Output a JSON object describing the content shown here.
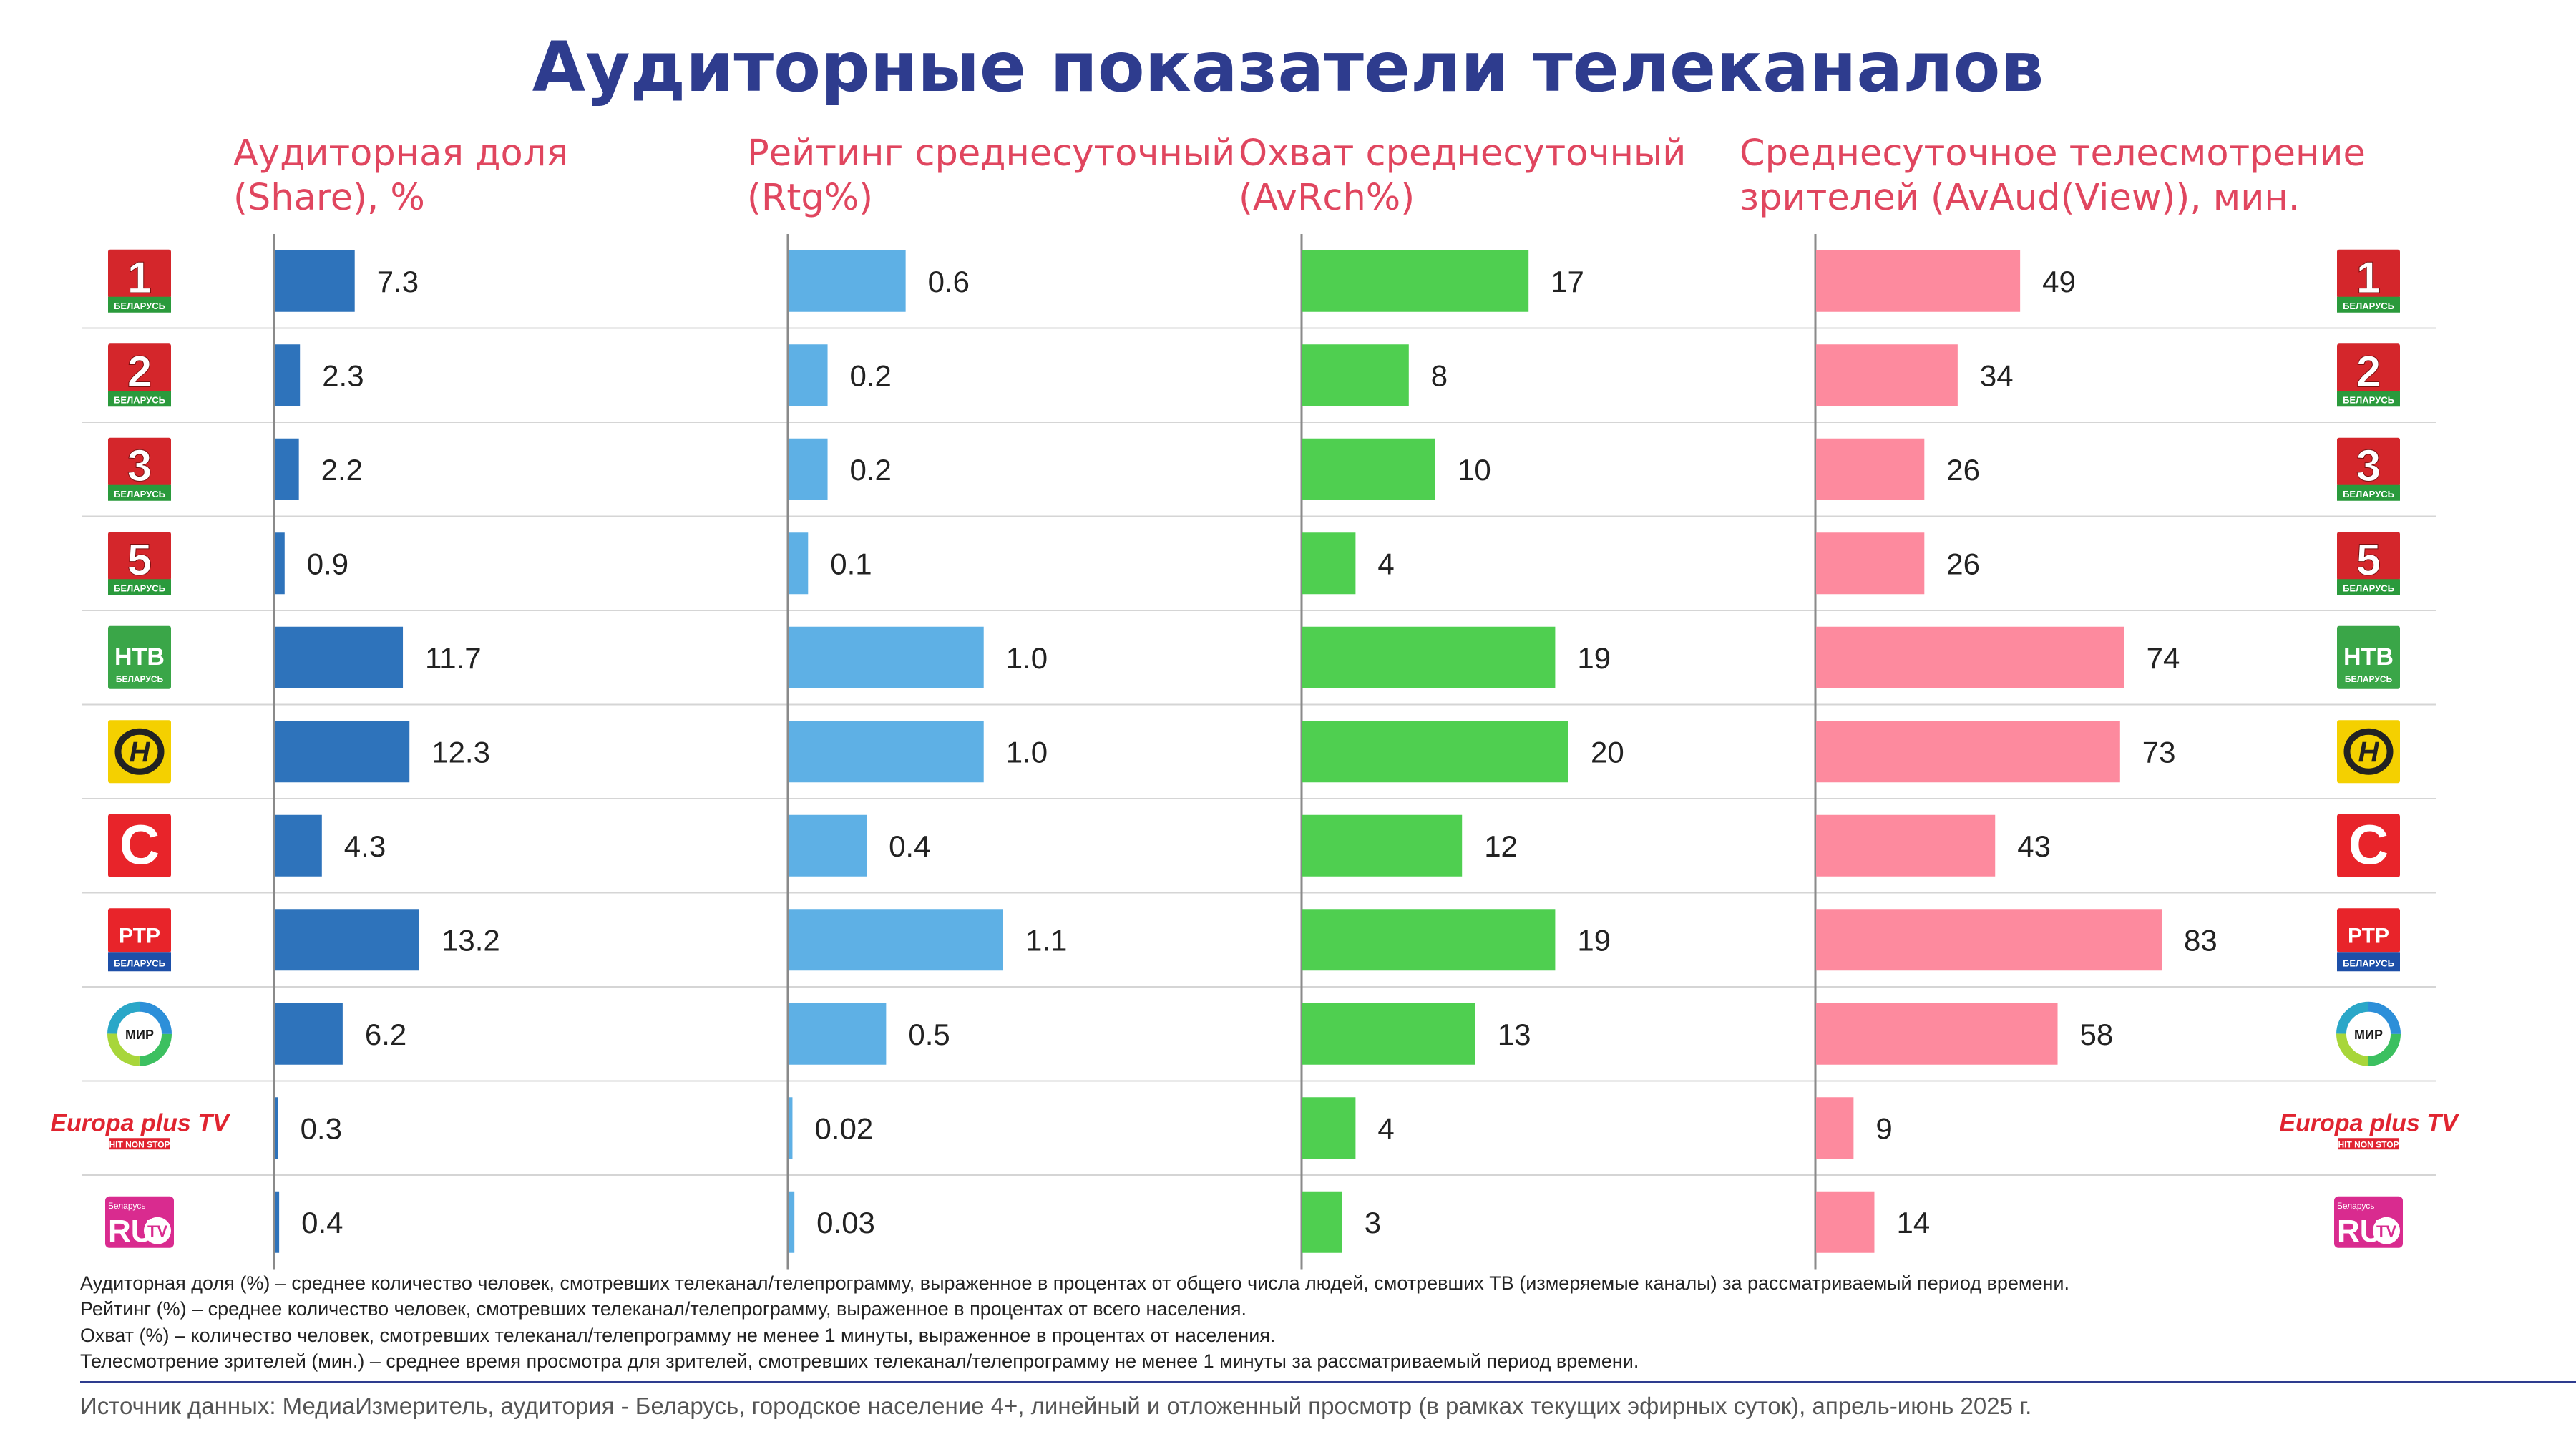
{
  "title": "Аудиторные показатели телеканалов",
  "chart_data": {
    "type": "bar",
    "orientation": "horizontal",
    "channels": [
      "Беларусь 1",
      "Беларусь 2",
      "Беларусь 3",
      "Беларусь 5",
      "НТВ Беларусь",
      "ОНТ",
      "СТВ",
      "РТР Беларусь",
      "МИР",
      "Europa Plus TV",
      "RU TV Беларусь"
    ],
    "panels": [
      {
        "key": "share",
        "title_lines": [
          "Аудиторная доля",
          "(Share), %"
        ],
        "values": [
          7.3,
          2.3,
          2.2,
          0.9,
          11.7,
          12.3,
          4.3,
          13.2,
          6.2,
          0.3,
          0.4
        ],
        "labels": [
          "7.3",
          "2.3",
          "2.2",
          "0.9",
          "11.7",
          "12.3",
          "4.3",
          "13.2",
          "6.2",
          "0.3",
          "0.4"
        ],
        "max": 13.2,
        "color": "#2e73bb"
      },
      {
        "key": "rtg",
        "title_lines": [
          "Рейтинг среднесуточный",
          "(Rtg%)"
        ],
        "values": [
          0.6,
          0.2,
          0.2,
          0.1,
          1.0,
          1.0,
          0.4,
          1.1,
          0.5,
          0.02,
          0.03
        ],
        "labels": [
          "0.6",
          "0.2",
          "0.2",
          "0.1",
          "1.0",
          "1.0",
          "0.4",
          "1.1",
          "0.5",
          "0.02",
          "0.03"
        ],
        "max": 1.1,
        "color": "#5eb0e5"
      },
      {
        "key": "avrch",
        "title_lines": [
          "Охват среднесуточный",
          "(AvRch%)"
        ],
        "values": [
          17,
          8,
          10,
          4,
          19,
          20,
          12,
          19,
          13,
          4,
          3
        ],
        "labels": [
          "17",
          "8",
          "10",
          "4",
          "19",
          "20",
          "12",
          "19",
          "13",
          "4",
          "3"
        ],
        "max": 20,
        "color": "#4fcf50"
      },
      {
        "key": "avaud",
        "title_lines": [
          "Среднесуточное телесмотрение",
          "зрителей (AvAud(View)), мин."
        ],
        "values": [
          49,
          34,
          26,
          26,
          74,
          73,
          43,
          83,
          58,
          9,
          14
        ],
        "labels": [
          "49",
          "34",
          "26",
          "26",
          "74",
          "73",
          "43",
          "83",
          "58",
          "9",
          "14"
        ],
        "max": 83,
        "color": "#fd8a9e"
      }
    ]
  },
  "logos": [
    {
      "type": "bel",
      "text": "1",
      "sub": "БЕЛАРУСЬ"
    },
    {
      "type": "bel",
      "text": "2",
      "sub": "БЕЛАРУСЬ"
    },
    {
      "type": "bel",
      "text": "3",
      "sub": "БЕЛАРУСЬ"
    },
    {
      "type": "bel",
      "text": "5",
      "sub": "БЕЛАРУСЬ"
    },
    {
      "type": "ntv",
      "text": "НТВ",
      "sub": "БЕЛАРУСЬ"
    },
    {
      "type": "ont",
      "text": "Н"
    },
    {
      "type": "stv",
      "text": "С"
    },
    {
      "type": "rtr",
      "text": "РТР",
      "sub": "БЕЛАРУСЬ"
    },
    {
      "type": "mir",
      "text": "МИР"
    },
    {
      "type": "europa",
      "text": "Europa plus TV",
      "sub": "HIT NON STOP"
    },
    {
      "type": "rutv",
      "text": "RU",
      "tv": "TV",
      "sub": "Беларусь"
    }
  ],
  "footnotes": [
    "Аудиторная доля (%) – среднее количество человек, смотревших телеканал/телепрограмму, выраженное в процентах от общего числа людей, смотревших ТВ (измеряемые каналы) за рассматриваемый период времени.",
    "Рейтинг (%) – среднее количество человек, смотревших телеканал/телепрограмму, выраженное в процентах от всего населения.",
    "Охват (%) – количество человек, смотревших телеканал/телепрограмму не менее 1 минуты, выраженное в процентах от населения.",
    "Телесмотрение зрителей (мин.) – среднее время просмотра для зрителей, смотревших телеканал/телепрограмму не менее 1 минуты за рассматриваемый период времени."
  ],
  "source": "Источник данных: МедиаИзмеритель, аудитория - Беларусь, городское население 4+, линейный и отложенный просмотр (в рамках текущих эфирных суток), апрель-июнь 2025 г."
}
